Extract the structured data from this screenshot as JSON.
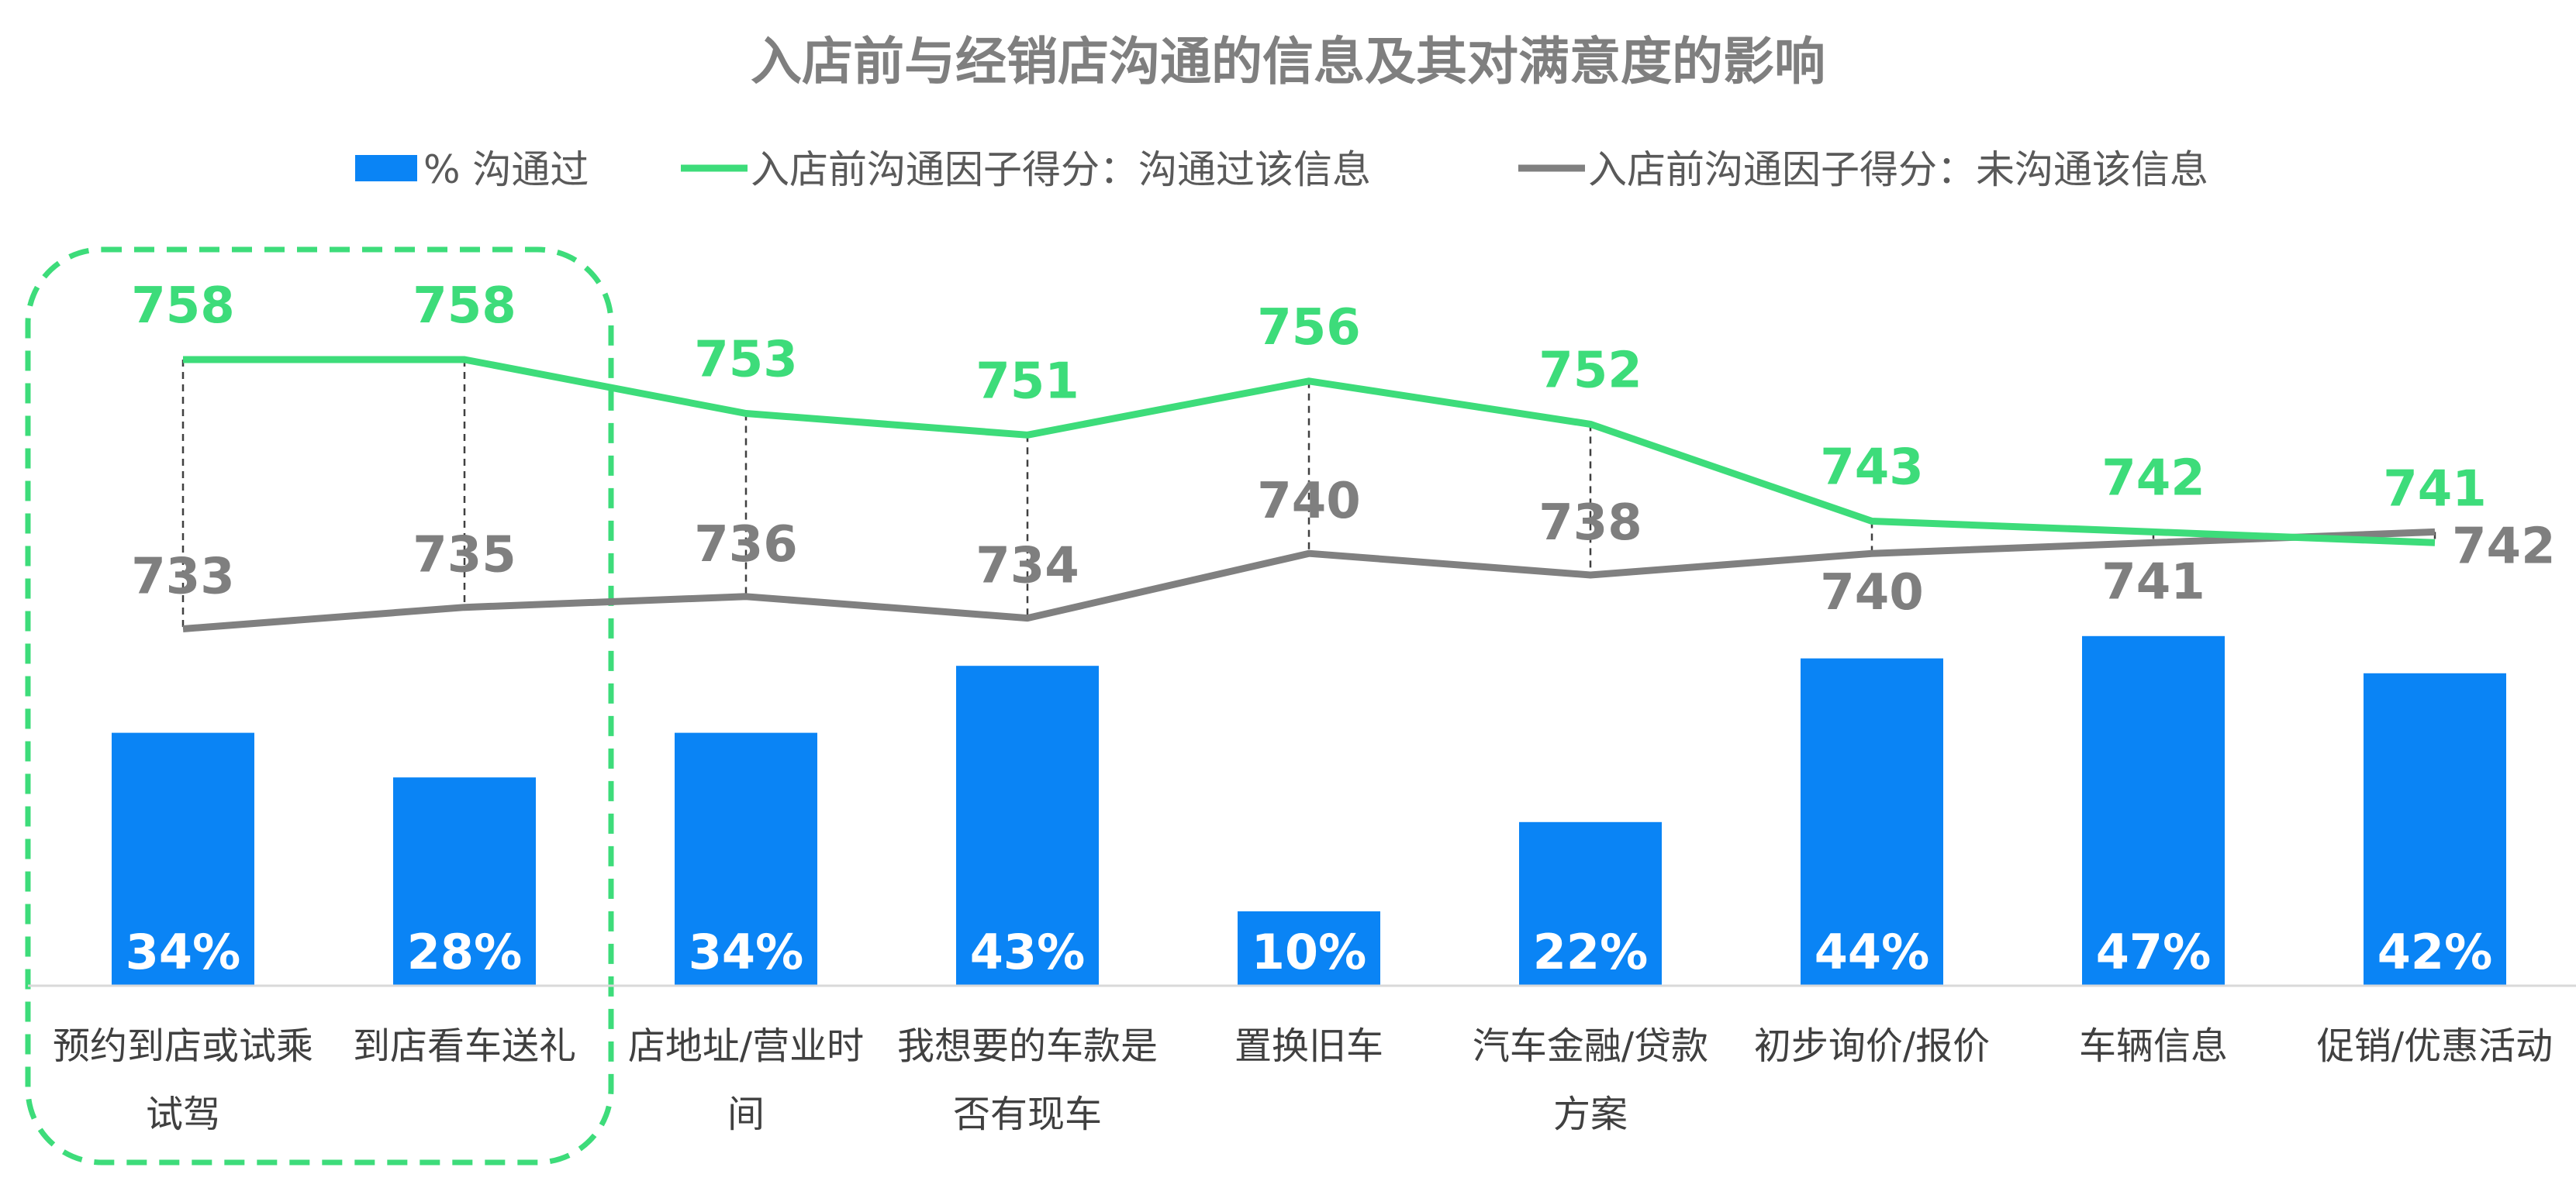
{
  "chart_data": {
    "type": "bar",
    "title": "入店前与经销店沟通的信息及其对满意度的影响",
    "categories": [
      [
        "预约到店或试乘",
        "试驾"
      ],
      [
        "到店看车送礼"
      ],
      [
        "店地址/营业时",
        "间"
      ],
      [
        "我想要的车款是",
        "否有现车"
      ],
      [
        "置换旧车"
      ],
      [
        "汽车金融/贷款",
        "方案"
      ],
      [
        "初步询价/报价"
      ],
      [
        "车辆信息"
      ],
      [
        "促销/优惠活动"
      ]
    ],
    "series": [
      {
        "name": "% 沟通过",
        "type": "bar",
        "values": [
          34,
          28,
          34,
          43,
          10,
          22,
          44,
          47,
          42
        ],
        "labels": [
          "34%",
          "28%",
          "34%",
          "43%",
          "10%",
          "22%",
          "44%",
          "47%",
          "42%"
        ],
        "color": "#0a84f5"
      },
      {
        "name": "入店前沟通因子得分：沟通过该信息",
        "type": "line",
        "values": [
          758,
          758,
          753,
          751,
          756,
          752,
          743,
          742,
          741
        ],
        "color": "#3ddc7a"
      },
      {
        "name": "入店前沟通因子得分：未沟通该信息",
        "type": "line",
        "values": [
          733,
          735,
          736,
          734,
          740,
          738,
          740,
          741,
          742
        ],
        "color": "#808080"
      }
    ],
    "highlight": {
      "categories": [
        0,
        1
      ],
      "style": "dashed",
      "color": "#3ddc7a"
    },
    "legend_position": "top",
    "grid": false
  }
}
